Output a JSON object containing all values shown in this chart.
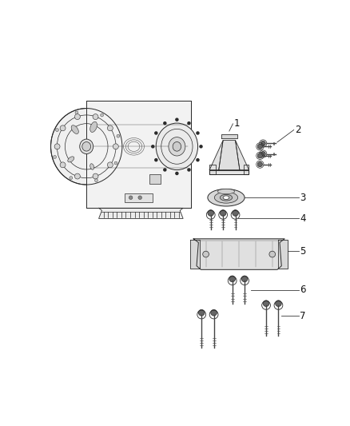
{
  "background_color": "#ffffff",
  "fig_width": 4.38,
  "fig_height": 5.33,
  "dpi": 100,
  "line_color": "#2a2a2a",
  "label_color": "#111111",
  "label_fontsize": 8.5
}
